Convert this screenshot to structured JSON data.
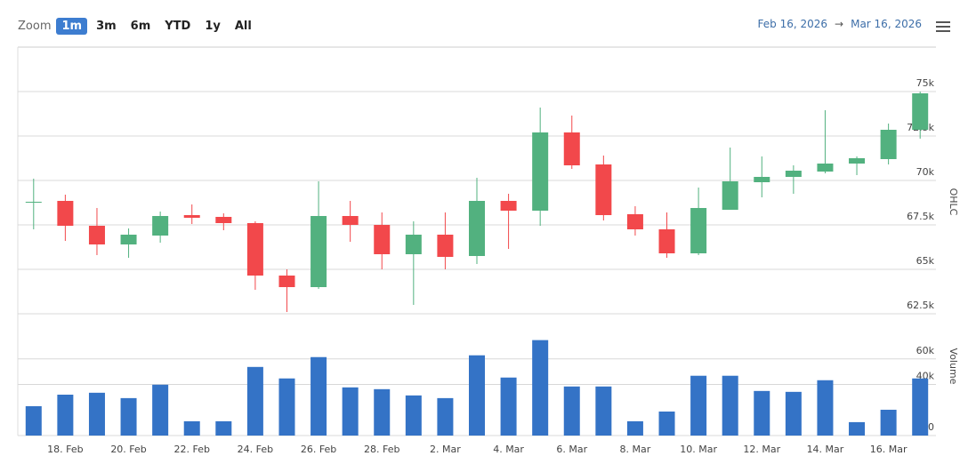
{
  "toolbar": {
    "zoom_label": "Zoom",
    "buttons": [
      "1m",
      "3m",
      "6m",
      "YTD",
      "1y",
      "All"
    ],
    "active": "1m"
  },
  "range": {
    "from": "Feb 16, 2026",
    "separator": "→",
    "to": "Mar 16, 2026"
  },
  "chart_data": {
    "type": "candlestick",
    "categories": [
      null,
      "18. Feb",
      null,
      "20. Feb",
      null,
      "22. Feb",
      null,
      "24. Feb",
      null,
      "26. Feb",
      null,
      "28. Feb",
      null,
      "2. Mar",
      null,
      "4. Mar",
      null,
      "6. Mar",
      null,
      "8. Mar",
      null,
      "10. Mar",
      null,
      "12. Mar",
      null,
      "14. Mar",
      null,
      "16. Mar",
      null
    ],
    "y_label": "OHLC",
    "open": [
      68750,
      68850,
      67450,
      66400,
      66900,
      68050,
      67950,
      67600,
      64650,
      64000,
      68000,
      67500,
      65850,
      66950,
      65750,
      68850,
      68300,
      72700,
      70900,
      68100,
      67250,
      65900,
      68350,
      69900,
      70200,
      70500,
      70950,
      71200,
      72850
    ],
    "high": [
      70100,
      69200,
      68450,
      67300,
      68250,
      68650,
      68150,
      67700,
      65000,
      69950,
      68850,
      68200,
      67700,
      68200,
      70150,
      69250,
      74100,
      73650,
      71400,
      68550,
      68200,
      69600,
      71850,
      71350,
      70850,
      73950,
      71350,
      73200,
      75000
    ],
    "low": [
      67250,
      66600,
      65800,
      65650,
      66500,
      67550,
      67200,
      63850,
      62600,
      63900,
      66550,
      65000,
      63000,
      65000,
      65300,
      66150,
      67450,
      70650,
      67750,
      66900,
      65650,
      65800,
      68350,
      69050,
      69250,
      70400,
      70300,
      70900,
      72350
    ],
    "close": [
      68800,
      67450,
      66400,
      66950,
      68000,
      67900,
      67600,
      64650,
      64000,
      68000,
      67500,
      65850,
      66950,
      65700,
      68850,
      68300,
      72700,
      70850,
      68050,
      67250,
      65900,
      68450,
      69950,
      70200,
      70550,
      70950,
      71250,
      72850,
      74900
    ],
    "up_color": "#52b17f",
    "down_color": "#f2484b",
    "ylim": [
      61500,
      77500
    ],
    "yticks": [
      {
        "value": 62500,
        "label": "62.5k"
      },
      {
        "value": 65000,
        "label": "65k"
      },
      {
        "value": 67500,
        "label": "67.5k"
      },
      {
        "value": 70000,
        "label": "70k"
      },
      {
        "value": 72500,
        "label": "72.5k"
      },
      {
        "value": 75000,
        "label": "75k"
      }
    ],
    "grid": true,
    "volume": {
      "name": "Volume",
      "color": "#3473c6",
      "values": [
        23000,
        32000,
        33500,
        29300,
        39800,
        11200,
        11200,
        53700,
        44700,
        61400,
        37700,
        36300,
        31400,
        29300,
        62800,
        45400,
        74700,
        38400,
        38400,
        11200,
        18800,
        46800,
        46800,
        34900,
        34200,
        43300,
        10500,
        20200,
        44700
      ],
      "ylim": [
        0,
        80000
      ],
      "yticks": [
        0,
        {
          "value": 40000,
          "label": "40k"
        },
        {
          "value": 60000,
          "label": "60k"
        }
      ]
    }
  }
}
